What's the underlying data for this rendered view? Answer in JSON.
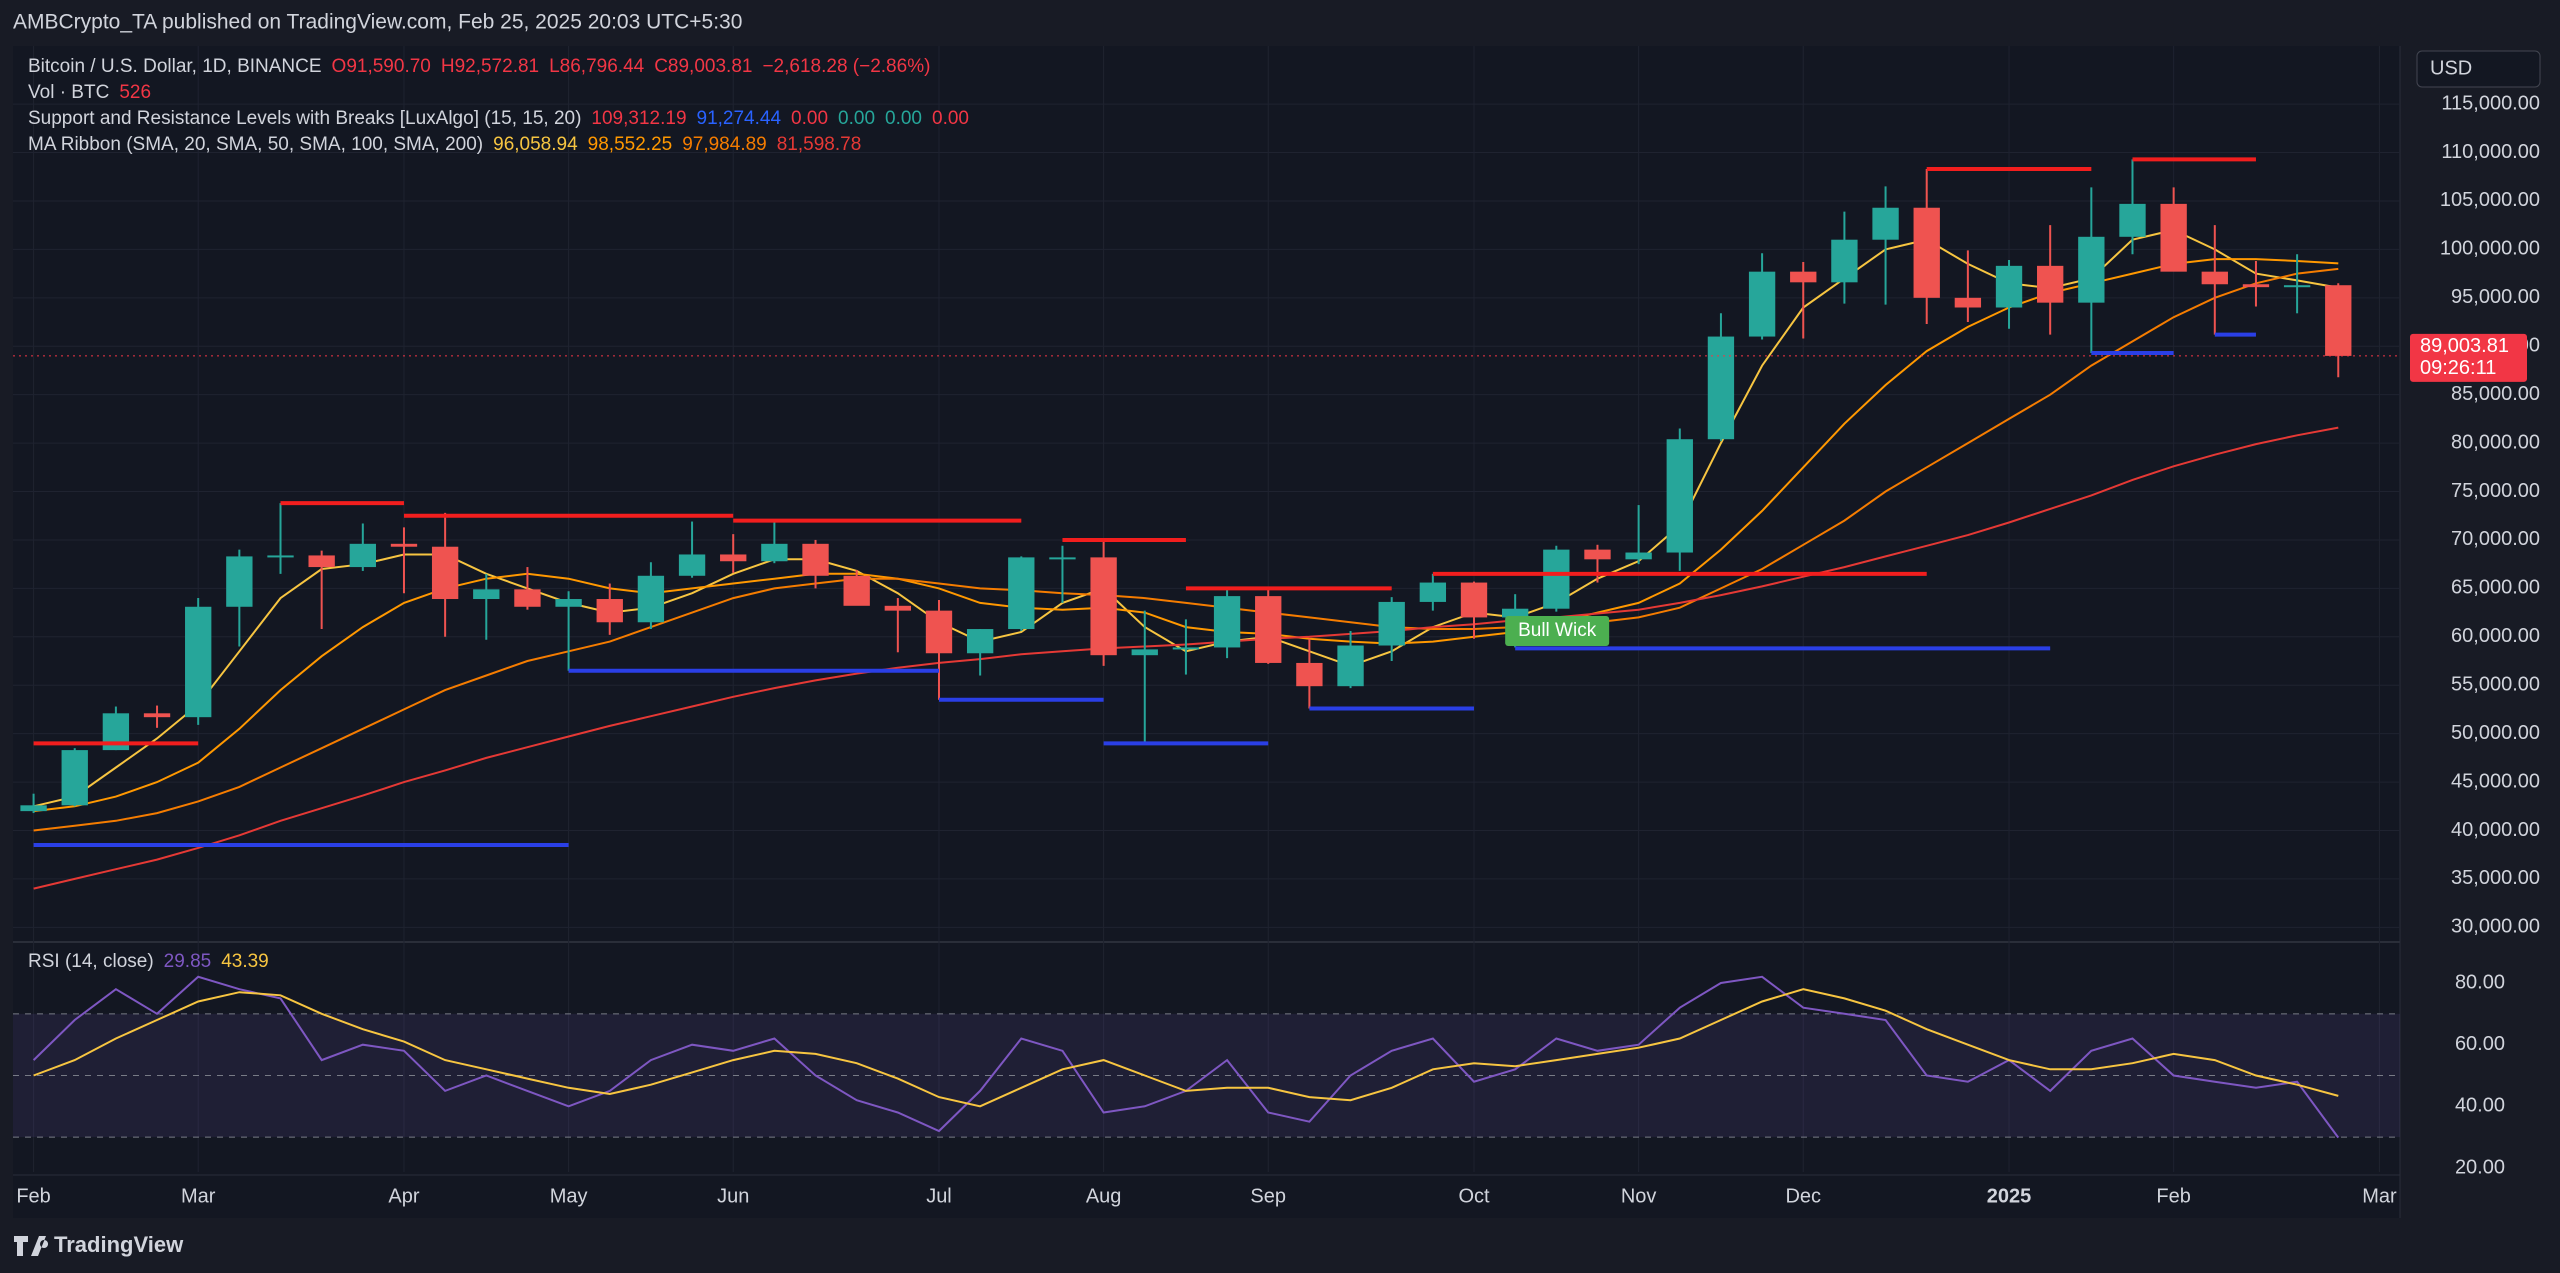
{
  "header": "AMBCrypto_TA published on TradingView.com, Feb 25, 2025 20:03 UTC+5:30",
  "footer": "TradingView",
  "chart_data": {
    "type": "candlestick",
    "title": "Bitcoin / U.S. Dollar, 1D, BINANCE",
    "categories": [
      "Feb",
      null,
      null,
      null,
      "Mar",
      null,
      null,
      null,
      null,
      "Apr",
      null,
      null,
      null,
      "May",
      null,
      null,
      null,
      "Jun",
      null,
      null,
      null,
      null,
      "Jul",
      null,
      null,
      null,
      "Aug",
      null,
      null,
      null,
      "Sep",
      null,
      null,
      null,
      null,
      "Oct",
      null,
      null,
      null,
      "Nov",
      null,
      null,
      null,
      "Dec",
      null,
      null,
      null,
      null,
      "2025",
      null,
      null,
      null,
      "Feb",
      null,
      null,
      null,
      null,
      "Mar"
    ],
    "open": [
      42000,
      42600,
      48300,
      52100,
      51700,
      63100,
      68300,
      68400,
      67200,
      69600,
      69300,
      63900,
      64900,
      63100,
      63900,
      61500,
      66300,
      68500,
      67800,
      69600,
      66300,
      63200,
      62700,
      58300,
      60800,
      68200,
      68200,
      58100,
      58700,
      58900,
      64200,
      57300,
      54900,
      59100,
      63600,
      65600,
      62000,
      62900,
      69000,
      68000,
      68700,
      80400,
      91000,
      97700,
      96600,
      101000,
      104300,
      95000,
      94000,
      98300,
      94500,
      101300,
      104700,
      97700,
      96400,
      96100,
      96300,
      null
    ],
    "high": [
      43800,
      48500,
      52800,
      52900,
      64000,
      69000,
      73800,
      68900,
      71700,
      71300,
      72800,
      66500,
      67200,
      64700,
      65500,
      67700,
      71900,
      70600,
      71900,
      70000,
      66900,
      64000,
      63800,
      60800,
      68300,
      69400,
      70000,
      62700,
      61800,
      65000,
      64900,
      59800,
      60600,
      64100,
      66500,
      65700,
      64400,
      69400,
      69500,
      73600,
      81500,
      93400,
      99600,
      98700,
      103900,
      106500,
      108300,
      99900,
      98900,
      102500,
      106400,
      109300,
      106400,
      102500,
      98800,
      99500,
      96500,
      null
    ],
    "low": [
      41800,
      42500,
      48300,
      50600,
      50900,
      59000,
      66500,
      60800,
      66800,
      64500,
      60000,
      59700,
      62800,
      56500,
      60200,
      60800,
      66100,
      66600,
      67600,
      65000,
      63400,
      58400,
      53500,
      56000,
      60600,
      63500,
      57000,
      49000,
      56100,
      57800,
      57200,
      52600,
      54700,
      57500,
      62700,
      59800,
      58900,
      62600,
      65600,
      67500,
      66800,
      80200,
      90700,
      90800,
      94400,
      94300,
      92300,
      92500,
      91800,
      91200,
      89300,
      99500,
      97800,
      91200,
      94100,
      93400,
      86800,
      null
    ],
    "close": [
      42600,
      48300,
      52100,
      51700,
      63100,
      68300,
      68400,
      67200,
      69600,
      69300,
      63900,
      64900,
      63100,
      63900,
      61500,
      66300,
      68500,
      67800,
      69600,
      66300,
      63200,
      62700,
      58300,
      60800,
      68200,
      68200,
      58100,
      58700,
      58900,
      64200,
      57300,
      54900,
      59100,
      63600,
      65600,
      62000,
      62900,
      69000,
      68000,
      68700,
      80400,
      91000,
      97700,
      96600,
      101000,
      104300,
      95000,
      94000,
      98300,
      94500,
      101300,
      104700,
      97700,
      96400,
      96100,
      96300,
      89003.81,
      null
    ],
    "up_color": "#26a69a",
    "down_color": "#ef5350",
    "ylim": [
      28900,
      121000
    ],
    "yticks": [
      {
        "value": 30000,
        "label": "30,000.00"
      },
      {
        "value": 35000,
        "label": "35,000.00"
      },
      {
        "value": 40000,
        "label": "40,000.00"
      },
      {
        "value": 45000,
        "label": "45,000.00"
      },
      {
        "value": 50000,
        "label": "50,000.00"
      },
      {
        "value": 55000,
        "label": "55,000.00"
      },
      {
        "value": 60000,
        "label": "60,000.00"
      },
      {
        "value": 65000,
        "label": "65,000.00"
      },
      {
        "value": 70000,
        "label": "70,000.00"
      },
      {
        "value": 75000,
        "label": "75,000.00"
      },
      {
        "value": 80000,
        "label": "80,000.00"
      },
      {
        "value": 85000,
        "label": "85,000.00"
      },
      {
        "value": 90000,
        "label": "90,000.00"
      },
      {
        "value": 95000,
        "label": "95,000.00"
      },
      {
        "value": 100000,
        "label": "100,000.00"
      },
      {
        "value": 105000,
        "label": "105,000.00"
      },
      {
        "value": 110000,
        "label": "110,000.00"
      },
      {
        "value": 115000,
        "label": "115,000.00"
      }
    ],
    "grid": true,
    "currency": "USD",
    "last_price": {
      "value": 89003.81,
      "label": "89,003.81",
      "countdown": "09:26:11",
      "color": "#f23645"
    },
    "legend": [
      {
        "label": "Bitcoin / U.S. Dollar, 1D, BINANCE",
        "values": [
          {
            "text": "O91,590.70",
            "color": "#f23645"
          },
          {
            "text": "H92,572.81",
            "color": "#f23645"
          },
          {
            "text": "L86,796.44",
            "color": "#f23645"
          },
          {
            "text": "C89,003.81",
            "color": "#f23645"
          },
          {
            "text": "−2,618.28 (−2.86%)",
            "color": "#f23645"
          }
        ]
      },
      {
        "label": "Vol · BTC",
        "values": [
          {
            "text": "526",
            "color": "#f23645"
          }
        ]
      },
      {
        "label": "Support and Resistance Levels with Breaks [LuxAlgo] (15, 15, 20)",
        "values": [
          {
            "text": "109,312.19",
            "color": "#f23645"
          },
          {
            "text": "91,274.44",
            "color": "#2962ff"
          },
          {
            "text": "0.00",
            "color": "#f23645"
          },
          {
            "text": "0.00",
            "color": "#26a69a"
          },
          {
            "text": "0.00",
            "color": "#26a69a"
          },
          {
            "text": "0.00",
            "color": "#f23645"
          }
        ]
      },
      {
        "label": "MA Ribbon (SMA, 20, SMA, 50, SMA, 100, SMA, 200)",
        "values": [
          {
            "text": "96,058.94",
            "color": "#f7c541"
          },
          {
            "text": "98,552.25",
            "color": "#ff9800"
          },
          {
            "text": "97,984.89",
            "color": "#f57c00"
          },
          {
            "text": "81,598.78",
            "color": "#e53935"
          }
        ]
      }
    ],
    "ma": {
      "series": [
        {
          "color": "#f7c541",
          "values": [
            42500,
            43500,
            46500,
            49500,
            53000,
            58500,
            64000,
            67000,
            67500,
            68500,
            68500,
            66500,
            65000,
            63500,
            62500,
            63000,
            64500,
            66500,
            68000,
            68000,
            66800,
            64500,
            61500,
            59500,
            60500,
            63500,
            65000,
            61000,
            58500,
            59500,
            60000,
            58500,
            57000,
            58500,
            61000,
            62500,
            62000,
            63500,
            66000,
            67800,
            71500,
            80000,
            88000,
            94000,
            97000,
            100000,
            101000,
            98500,
            96500,
            96000,
            97000,
            101000,
            102000,
            100000,
            97500,
            96800,
            96058.94,
            null
          ]
        },
        {
          "color": "#ff9800",
          "values": [
            42000,
            42500,
            43500,
            45000,
            47000,
            50500,
            54500,
            58000,
            61000,
            63500,
            65000,
            66000,
            66500,
            66000,
            65000,
            64500,
            65000,
            65500,
            66000,
            66500,
            66500,
            66000,
            65000,
            63500,
            63000,
            62800,
            63000,
            62500,
            61000,
            60500,
            60300,
            59800,
            59500,
            59300,
            59500,
            60000,
            60500,
            61500,
            62500,
            63500,
            65500,
            69000,
            73000,
            77500,
            82000,
            86000,
            89500,
            92000,
            94000,
            95500,
            96500,
            97500,
            98500,
            99000,
            99000,
            98800,
            98552.25,
            null
          ]
        },
        {
          "color": "#f57c00",
          "values": [
            40000,
            40500,
            41000,
            41800,
            43000,
            44500,
            46500,
            48500,
            50500,
            52500,
            54500,
            56000,
            57500,
            58500,
            59500,
            61000,
            62500,
            64000,
            65000,
            65500,
            66000,
            66000,
            65500,
            65000,
            64800,
            64500,
            64300,
            64000,
            63500,
            63000,
            62500,
            62000,
            61500,
            61000,
            60800,
            60800,
            61000,
            61300,
            61500,
            62000,
            63000,
            65000,
            67000,
            69500,
            72000,
            75000,
            77500,
            80000,
            82500,
            85000,
            88000,
            90500,
            93000,
            95000,
            96500,
            97500,
            97984.89,
            null
          ]
        },
        {
          "color": "#e53935",
          "values": [
            34000,
            35000,
            36000,
            37000,
            38200,
            39500,
            41000,
            42300,
            43600,
            45000,
            46200,
            47500,
            48600,
            49700,
            50800,
            51800,
            52800,
            53800,
            54700,
            55500,
            56200,
            56800,
            57300,
            57700,
            58200,
            58500,
            58800,
            59000,
            59200,
            59500,
            59800,
            60000,
            60300,
            60600,
            61000,
            61300,
            61700,
            62000,
            62400,
            62800,
            63500,
            64300,
            65200,
            66200,
            67200,
            68300,
            69400,
            70500,
            71800,
            73200,
            74600,
            76200,
            77600,
            78800,
            79900,
            80800,
            81598.78,
            null
          ]
        }
      ]
    },
    "levels": {
      "resistance_color": "#f21e1e",
      "support_color": "#2a3fe6",
      "resistance": [
        {
          "value": 49000,
          "start": 0,
          "end": 4
        },
        {
          "value": 73800,
          "start": 6,
          "end": 9
        },
        {
          "value": 72500,
          "start": 9,
          "end": 17
        },
        {
          "value": 72000,
          "start": 17,
          "end": 24
        },
        {
          "value": 70000,
          "start": 25,
          "end": 28
        },
        {
          "value": 65000,
          "start": 28,
          "end": 33
        },
        {
          "value": 66500,
          "start": 34,
          "end": 46
        },
        {
          "value": 108300,
          "start": 46,
          "end": 50
        },
        {
          "value": 109300,
          "start": 51,
          "end": 54
        }
      ],
      "support": [
        {
          "value": 38500,
          "start": 0,
          "end": 13
        },
        {
          "value": 56500,
          "start": 13,
          "end": 22
        },
        {
          "value": 53500,
          "start": 22,
          "end": 26
        },
        {
          "value": 49000,
          "start": 26,
          "end": 30
        },
        {
          "value": 52600,
          "start": 31,
          "end": 35
        },
        {
          "value": 58800,
          "start": 36,
          "end": 49
        },
        {
          "value": 89300,
          "start": 50,
          "end": 52
        },
        {
          "value": 91200,
          "start": 53,
          "end": 54
        }
      ]
    },
    "annotation": {
      "text": "Bull Wick",
      "index": 36,
      "value": 60700,
      "color": "#4caf50"
    },
    "rsi": {
      "title": "RSI (14, close)",
      "color": "#7e57c2",
      "ma_color": "#f7c541",
      "values": [
        55,
        68,
        78,
        70,
        82,
        78,
        75,
        55,
        60,
        58,
        45,
        50,
        45,
        40,
        45,
        55,
        60,
        58,
        62,
        50,
        42,
        38,
        32,
        45,
        62,
        58,
        38,
        40,
        45,
        55,
        38,
        35,
        50,
        58,
        62,
        48,
        52,
        62,
        58,
        60,
        72,
        80,
        82,
        72,
        70,
        68,
        50,
        48,
        55,
        45,
        58,
        62,
        50,
        48,
        46,
        48,
        29.85,
        null
      ],
      "ma_values": [
        50,
        55,
        62,
        68,
        74,
        77,
        76,
        70,
        65,
        61,
        55,
        52,
        49,
        46,
        44,
        47,
        51,
        55,
        58,
        57,
        54,
        49,
        43,
        40,
        46,
        52,
        55,
        50,
        45,
        46,
        46,
        43,
        42,
        46,
        52,
        54,
        53,
        55,
        57,
        59,
        62,
        68,
        74,
        78,
        75,
        71,
        65,
        60,
        55,
        52,
        52,
        54,
        57,
        55,
        50,
        47,
        43.39,
        null
      ],
      "bands": [
        30,
        50,
        70
      ],
      "ylim": [
        18.7,
        92
      ],
      "yticks": [
        {
          "value": 20,
          "label": "20.00"
        },
        {
          "value": 40,
          "label": "40.00"
        },
        {
          "value": 60,
          "label": "60.00"
        },
        {
          "value": 80,
          "label": "80.00"
        }
      ]
    }
  }
}
